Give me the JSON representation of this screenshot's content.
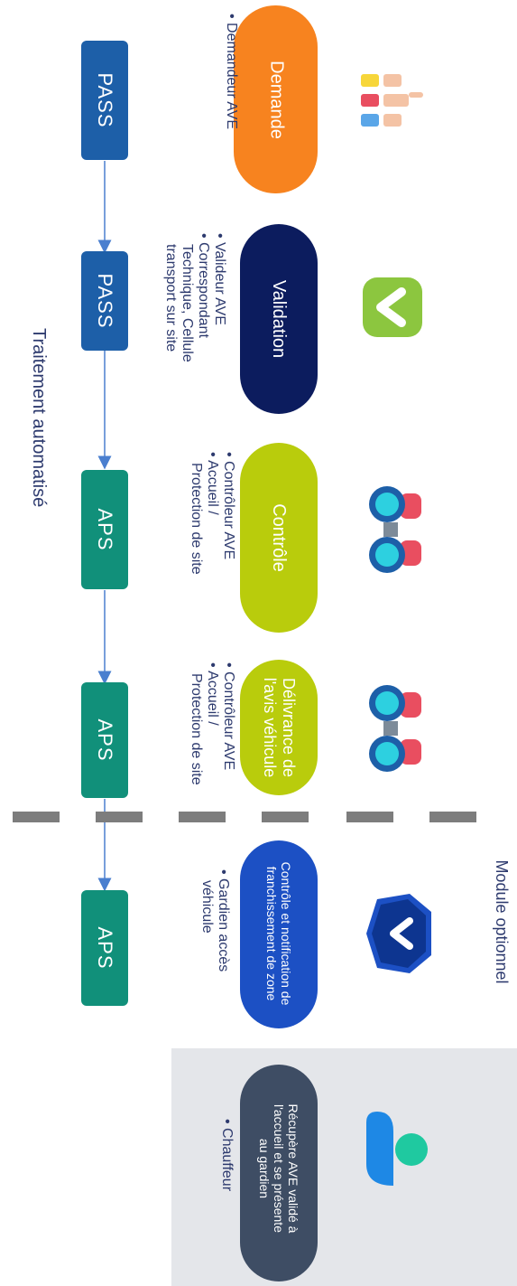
{
  "stages": [
    {
      "label": "Demande",
      "color": "#f7831f",
      "bullets": [
        "Demandeur AVE"
      ],
      "box": "PASS",
      "box_color": "#1d5fa8",
      "icon": "hands-icon"
    },
    {
      "label": "Validation",
      "color": "#0c1c5e",
      "bullets": [
        "Valideur AVE",
        "Correspondant",
        "Technique, Cellule",
        "transport sur site"
      ],
      "box": "PASS",
      "box_color": "#1d5fa8",
      "icon": "checkmark-icon"
    },
    {
      "label": "Contrôle",
      "color": "#b9cc0c",
      "bullets": [
        "Contrôleur AVE",
        "Accueil /",
        "Protection de site"
      ],
      "box": "APS",
      "box_color": "#11907a",
      "icon": "binoculars-icon"
    },
    {
      "label": "Délivrance de l'avis véhicule",
      "color": "#b9cc0c",
      "bullets": [
        "Contrôleur AVE",
        "Accueil /",
        "Protection de site"
      ],
      "box": "APS",
      "box_color": "#11907a",
      "icon": "binoculars-icon"
    },
    {
      "label": "Contrôle et notification de franchissement de zone",
      "color": "#1c50c4",
      "bullets": [
        "Gardien accès",
        "véhicule"
      ],
      "box": "APS",
      "box_color": "#11907a",
      "icon": "shield-check-icon"
    },
    {
      "label": "Récupère AVE validé à l'accueil et se présente au gardien",
      "color": "#3e4d64",
      "bullets": [
        "Chauffeur"
      ],
      "icon": "user-bubble-icon"
    }
  ],
  "labels": {
    "traitement": "Traitement automatisé",
    "module": "Module optionnel"
  }
}
